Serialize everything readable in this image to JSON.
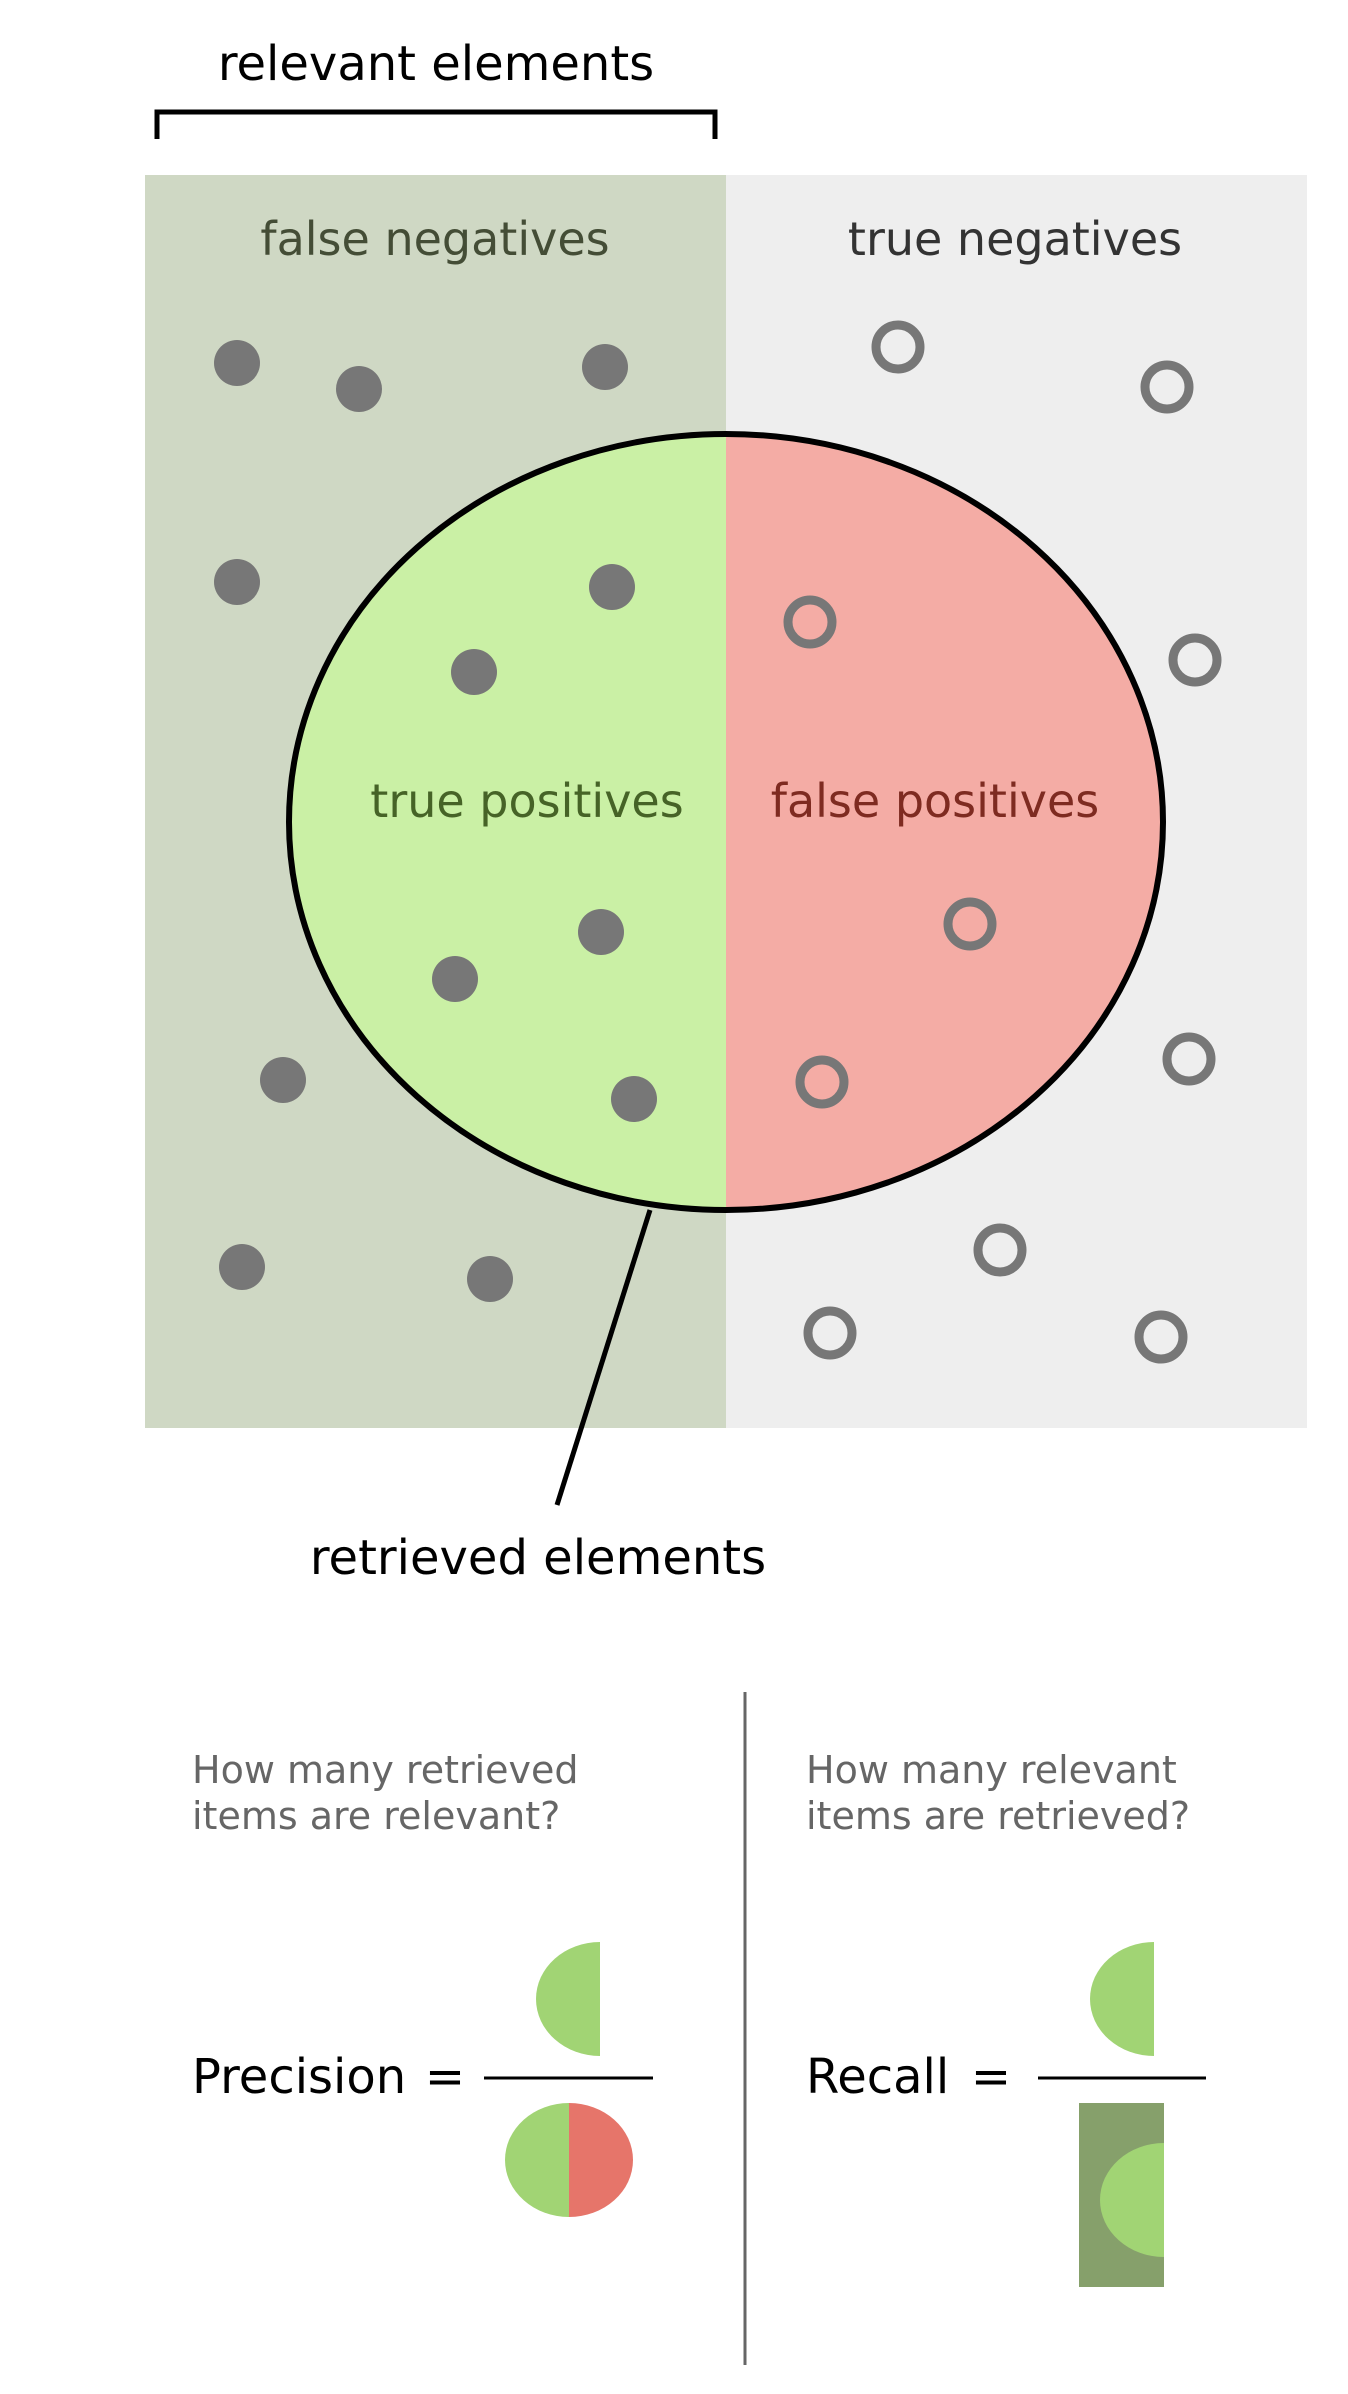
{
  "labels": {
    "relevant_elements": "relevant elements",
    "false_negatives": "false negatives",
    "true_negatives": "true negatives",
    "true_positives": "true positives",
    "false_positives": "false positives",
    "retrieved_elements": "retrieved elements"
  },
  "precision": {
    "question_line1": "How many retrieved",
    "question_line2": "items are relevant?",
    "label": "Precision",
    "equals": "="
  },
  "recall": {
    "question_line1": "How many relevant",
    "question_line2": "items are retrieved?",
    "label": "Recall",
    "equals": "="
  },
  "colors": {
    "relevant_region": "#cfd8c4",
    "non_relevant_region": "#eeeeee",
    "true_positive_fill": "#caf0a5",
    "false_positive_fill": "#f4aca5",
    "dot": "#777777",
    "fn_text": "#444d36",
    "tn_text": "#333333",
    "tp_text": "#466327",
    "fp_text": "#7e2b21",
    "question_text": "#666666",
    "tp_icon": "#a1d474",
    "fp_icon": "#e6756a",
    "relevant_icon": "#86a06b"
  },
  "icons": {
    "relevant_dot": "filled-circle",
    "irrelevant_dot": "hollow-circle"
  }
}
